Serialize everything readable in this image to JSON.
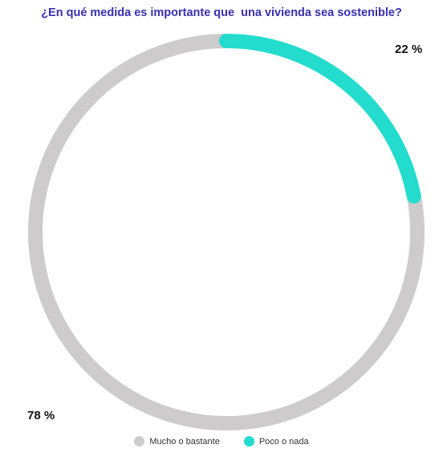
{
  "chart_data": {
    "type": "pie",
    "title": "¿En qué medida es importante que  una vivienda sea sostenible?",
    "categories": [
      "Mucho o bastante",
      "Poco o nada"
    ],
    "values": [
      78,
      22
    ],
    "labels": [
      "78 %",
      "22 %"
    ],
    "colors": [
      "#cdcbcc",
      "#23dccd"
    ],
    "legend_position": "bottom",
    "style": "donut-ring"
  }
}
